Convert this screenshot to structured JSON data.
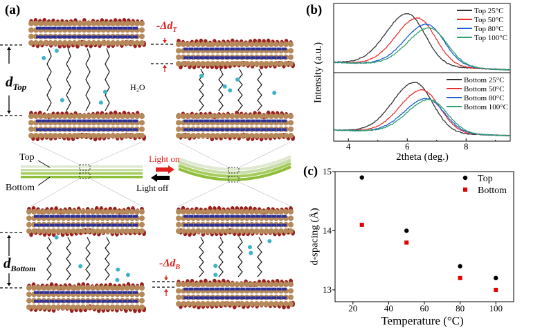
{
  "panel_a": {
    "label": "(a)",
    "d_top": "d",
    "d_top_sub": "Top",
    "d_bottom": "d",
    "d_bottom_sub": "Bottom",
    "delta_top": "-Δd",
    "delta_top_sub": "T",
    "delta_bottom": "-Δd",
    "delta_bottom_sub": "B",
    "water": "H₂O",
    "film_top": "Top",
    "film_bottom": "Bottom",
    "light_on": "Light on",
    "light_off": "Light off",
    "colors": {
      "carbon": "#b5895a",
      "nitrogen": "#2a2f9a",
      "oxygen": "#9b1d1d",
      "film": "#8fbf3a",
      "water": "#3bb3c9"
    }
  },
  "chart_data": [
    {
      "type": "line",
      "label": "(b)",
      "xlabel": "2theta (deg.)",
      "ylabel": "Intensity (a.u.)",
      "xlim": [
        3.5,
        9.5
      ],
      "xticks": [
        "4",
        "6",
        "8"
      ],
      "grid": false,
      "legend_position": "top-right",
      "subplots": [
        {
          "series": [
            {
              "name": "Top 25°C",
              "color": "#333333",
              "peak_2theta": 6.0,
              "relative_peak": 1.0
            },
            {
              "name": "Top 50°C",
              "color": "#e8312f",
              "peak_2theta": 6.35,
              "relative_peak": 0.92
            },
            {
              "name": "Top 80°C",
              "color": "#1f5fd6",
              "peak_2theta": 6.65,
              "relative_peak": 0.8
            },
            {
              "name": "Top 100°C",
              "color": "#2aa36b",
              "peak_2theta": 6.75,
              "relative_peak": 0.73
            }
          ]
        },
        {
          "series": [
            {
              "name": "Bottom 25°C",
              "color": "#333333",
              "peak_2theta": 6.25,
              "relative_peak": 1.0
            },
            {
              "name": "Bottom 50°C",
              "color": "#e8312f",
              "peak_2theta": 6.5,
              "relative_peak": 0.85
            },
            {
              "name": "Bottom 80°C",
              "color": "#1f5fd6",
              "peak_2theta": 6.65,
              "relative_peak": 0.68
            },
            {
              "name": "Bottom 100°C",
              "color": "#2aa36b",
              "peak_2theta": 6.75,
              "relative_peak": 0.66
            }
          ]
        }
      ]
    },
    {
      "type": "scatter",
      "label": "(c)",
      "xlabel": "Temperature (°C)",
      "ylabel": "d-spacing (Å)",
      "xlim": [
        10,
        110
      ],
      "ylim": [
        12.8,
        15
      ],
      "xticks": [
        20,
        40,
        60,
        80,
        100
      ],
      "yticks": [
        13,
        14,
        15
      ],
      "grid": false,
      "legend_position": "top-right",
      "x": [
        25,
        50,
        80,
        100
      ],
      "series": [
        {
          "name": "Top",
          "color": "#000000",
          "marker": "circle",
          "values": [
            14.9,
            14.0,
            13.4,
            13.2
          ]
        },
        {
          "name": "Bottom",
          "color": "#e00000",
          "marker": "square",
          "values": [
            14.1,
            13.8,
            13.2,
            13.0
          ]
        }
      ]
    }
  ]
}
